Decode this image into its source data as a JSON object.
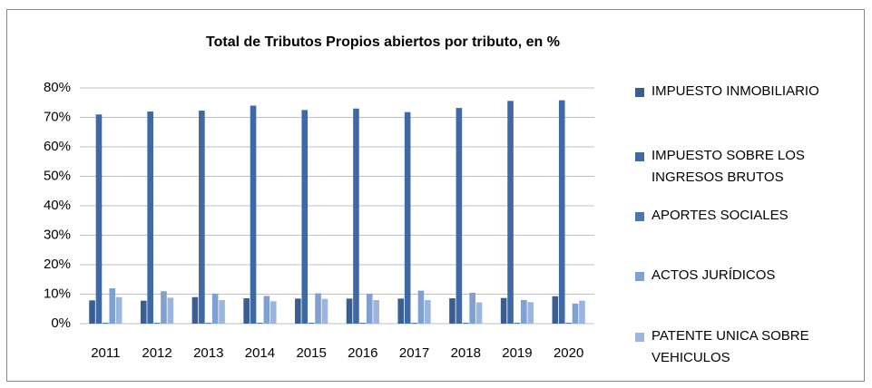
{
  "chart_data": {
    "type": "bar",
    "title": "Total de Tributos Propios abiertos por tributo, en %",
    "categories": [
      "2011",
      "2012",
      "2013",
      "2014",
      "2015",
      "2016",
      "2017",
      "2018",
      "2019",
      "2020"
    ],
    "series": [
      {
        "name": "IMPUESTO INMOBILIARIO",
        "color": "#3a5e92",
        "values": [
          7.9,
          7.8,
          9.0,
          8.6,
          8.5,
          8.5,
          8.5,
          8.6,
          8.7,
          9.3
        ]
      },
      {
        "name": "IMPUESTO SOBRE LOS INGRESOS BRUTOS",
        "color": "#3e69a6",
        "values": [
          71,
          72,
          72.3,
          74,
          72.5,
          73,
          71.8,
          73.2,
          75.6,
          75.8
        ]
      },
      {
        "name": "APORTES SOCIALES",
        "color": "#4a77b2",
        "values": [
          0.3,
          0.3,
          0.3,
          0.3,
          0.3,
          0.3,
          0.3,
          0.3,
          0.3,
          0.3
        ]
      },
      {
        "name": "ACTOS JURÍDICOS",
        "color": "#7fa0d2",
        "values": [
          12,
          11,
          10.2,
          9.4,
          10.3,
          10.2,
          11.2,
          10.5,
          8,
          6.8
        ]
      },
      {
        "name": "PATENTE UNICA SOBRE VEHICULOS",
        "color": "#9ab6de",
        "values": [
          9,
          8.8,
          8,
          7.6,
          8.4,
          8,
          8,
          7.2,
          7.3,
          7.8
        ]
      }
    ],
    "ylim": [
      0,
      80
    ],
    "yticks": [
      {
        "value": 0,
        "label": "0%"
      },
      {
        "value": 10,
        "label": "10%"
      },
      {
        "value": 20,
        "label": "20%"
      },
      {
        "value": 30,
        "label": "30%"
      },
      {
        "value": 40,
        "label": "40%"
      },
      {
        "value": 50,
        "label": "50%"
      },
      {
        "value": 60,
        "label": "60%"
      },
      {
        "value": 70,
        "label": "70%"
      },
      {
        "value": 80,
        "label": "80%"
      }
    ],
    "grid": true,
    "legend": "right"
  }
}
